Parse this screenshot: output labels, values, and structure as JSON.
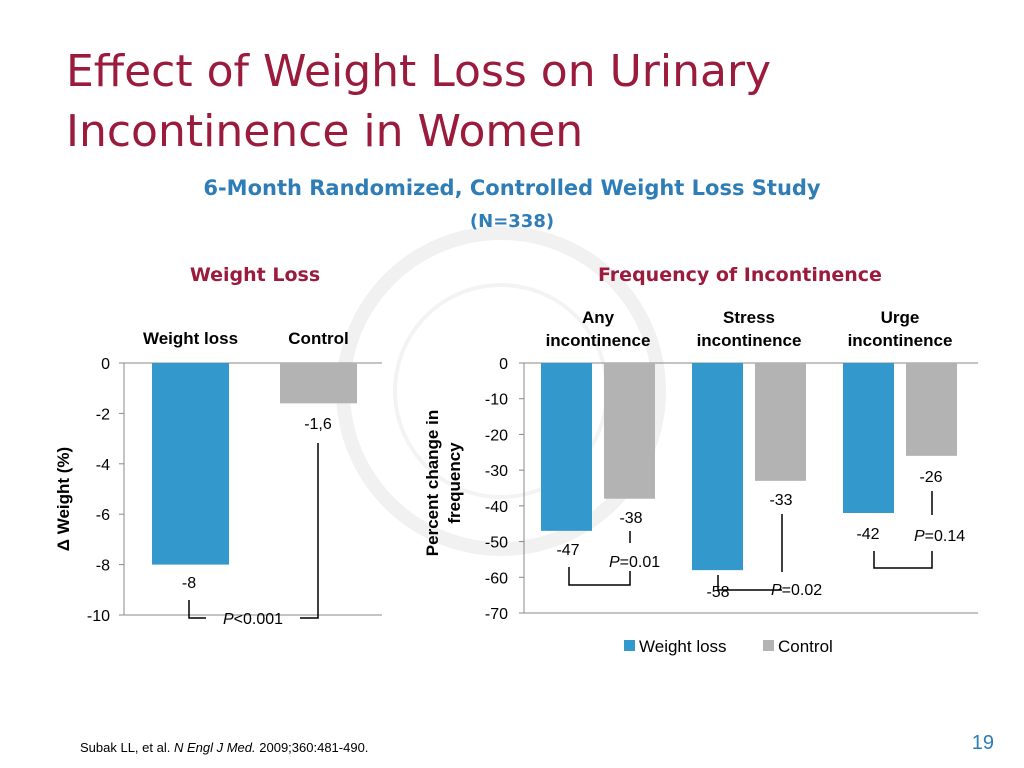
{
  "slide": {
    "title": "Effect of Weight Loss on Urinary Incontinence in Women",
    "subtitle": "6-Month Randomized, Controlled Weight Loss Study",
    "subtitle_n": "(N=338)",
    "page_number": "19",
    "citation": {
      "authors": "Subak LL, et al.",
      "journal": "N Engl J Med.",
      "details": "2009;360:481-490."
    },
    "colors": {
      "accent": "#9b1b3c",
      "subtitle": "#2e7db7",
      "weight_loss": "#3399cc",
      "control": "#b3b3b3"
    }
  },
  "chart_data": [
    {
      "type": "bar",
      "panel_title": "Weight Loss",
      "categories": [
        "Weight loss",
        "Control"
      ],
      "values": [
        -8,
        -1.6
      ],
      "value_labels": [
        "-8",
        "-1,6"
      ],
      "ylabel": "Δ Weight (%)",
      "ylim": [
        -10,
        0
      ],
      "yticks": [
        "0",
        "-2",
        "-4",
        "-6",
        "-8",
        "-10"
      ],
      "colors": [
        "#3399cc",
        "#b3b3b3"
      ],
      "annotation": {
        "italic": "P",
        "text": "<0.001"
      }
    },
    {
      "type": "bar",
      "panel_title": "Frequency of Incontinence",
      "categories": [
        "Any incontinence",
        "Stress incontinence",
        "Urge incontinence"
      ],
      "category_lines": [
        [
          "Any",
          "incontinence"
        ],
        [
          "Stress",
          "incontinence"
        ],
        [
          "Urge",
          "incontinence"
        ]
      ],
      "series": [
        {
          "name": "Weight loss",
          "values": [
            -47,
            -58,
            -42
          ],
          "color": "#3399cc"
        },
        {
          "name": "Control",
          "values": [
            -38,
            -33,
            -26
          ],
          "color": "#b3b3b3"
        }
      ],
      "ylabel_lines": [
        "Percent change in",
        "frequency"
      ],
      "ylim": [
        -70,
        0
      ],
      "yticks": [
        "0",
        "-10",
        "-20",
        "-30",
        "-40",
        "-50",
        "-60",
        "-70"
      ],
      "legend": "bottom",
      "p_values": [
        {
          "italic": "P",
          "text": "=0.01"
        },
        {
          "italic": "P",
          "text": "=0.02"
        },
        {
          "italic": "P",
          "text": "=0.14"
        }
      ]
    }
  ]
}
